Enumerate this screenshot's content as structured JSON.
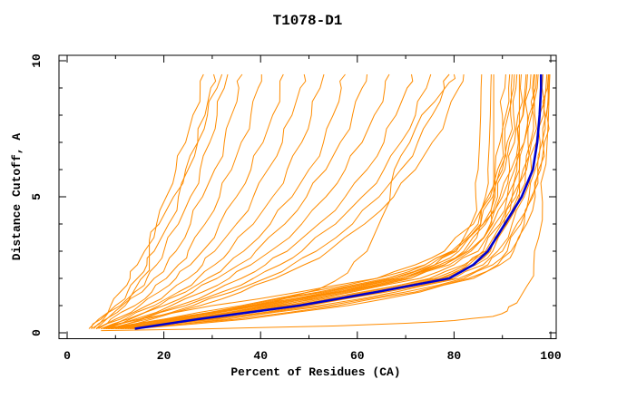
{
  "window": {
    "title": "T1078-D1"
  },
  "chart_data": {
    "type": "line",
    "title": "T1078-D1",
    "xlabel": "Percent of Residues (CA)",
    "ylabel": "Distance Cutoff, A",
    "xlim": [
      0,
      100
    ],
    "ylim": [
      0,
      10
    ],
    "x_major_ticks": [
      0,
      20,
      40,
      60,
      80,
      100
    ],
    "x_minor_step": 10,
    "y_major_ticks": [
      0,
      5,
      10
    ],
    "y_minor_step": 1,
    "grid": false,
    "legend_position": "none",
    "tick_style": "inward-mirrored",
    "colors": {
      "model_lines": "#ff8c00",
      "highlight_line": "#0000cd",
      "axis": "#000000",
      "background": "#ffffff",
      "text": "#000000"
    },
    "series": {
      "y_levels": [
        0.15,
        0.5,
        1,
        1.5,
        2,
        2.5,
        3,
        4,
        5,
        6,
        7,
        8,
        9,
        9.5
      ],
      "model_curves_x": [
        [
          4.5,
          6.5,
          9,
          11,
          13,
          14.5,
          16,
          18.5,
          20.5,
          22.5,
          24.5,
          26,
          27.5,
          28.2
        ],
        [
          5,
          7,
          10,
          12.5,
          14.5,
          16.5,
          18,
          21,
          23,
          25,
          27,
          28.5,
          29.7,
          30.3
        ],
        [
          5,
          7.5,
          11,
          14,
          16.5,
          18.5,
          20,
          23,
          25.5,
          27.5,
          29.5,
          31,
          32.5,
          33.2
        ],
        [
          5.5,
          8,
          12,
          15.5,
          18,
          20.5,
          22.5,
          25.5,
          28,
          30.5,
          32.5,
          34,
          35.5,
          36.2
        ],
        [
          6,
          9,
          14,
          17.5,
          20.5,
          23,
          25,
          28.5,
          31.5,
          34,
          36,
          38,
          39.5,
          40.2
        ],
        [
          6,
          10,
          15,
          19,
          22.5,
          25.5,
          28,
          31.5,
          35,
          38,
          40.5,
          42.5,
          44,
          44.7
        ],
        [
          6.5,
          11,
          16.5,
          21,
          25,
          28,
          30.5,
          35,
          38.5,
          41.5,
          44.5,
          46.5,
          48.2,
          49
        ],
        [
          7,
          12,
          18,
          23,
          27,
          30.5,
          33.5,
          38.5,
          42.5,
          45.5,
          48.5,
          50.5,
          52.3,
          53.1
        ],
        [
          7,
          12.5,
          19,
          24.5,
          29,
          33,
          36.5,
          42,
          46.5,
          50,
          53,
          55,
          56.7,
          57.5
        ],
        [
          7.5,
          13,
          20,
          26,
          31,
          35.5,
          39,
          45,
          49.5,
          53.5,
          56.5,
          59,
          61,
          62
        ],
        [
          8,
          14,
          21.5,
          28,
          33.5,
          38,
          42,
          48.5,
          53.5,
          57.5,
          61,
          63.5,
          65.7,
          66.6
        ],
        [
          8,
          15,
          23,
          30,
          36,
          41,
          45.5,
          52,
          57.5,
          62,
          65.5,
          68,
          70.3,
          71.2
        ],
        [
          8.5,
          15.5,
          24.5,
          32,
          38.5,
          44,
          48.5,
          55.5,
          61,
          65.5,
          69,
          72,
          74.3,
          75.2
        ],
        [
          9,
          16.5,
          26,
          34,
          41,
          46.5,
          51.5,
          59,
          64.5,
          69,
          72.5,
          75.5,
          78,
          79
        ],
        [
          9,
          17.5,
          27.5,
          36,
          43,
          49,
          54,
          61.5,
          67.5,
          72,
          75.5,
          78.5,
          81,
          82
        ],
        [
          14,
          26,
          44,
          58,
          71,
          78,
          82.5,
          85.5,
          86.5,
          87,
          87.3,
          87.5,
          87.6,
          87.7
        ],
        [
          13,
          25,
          42,
          56,
          69,
          76,
          80.5,
          83.5,
          84.5,
          85,
          85.3,
          85.5,
          85.6,
          85.7
        ],
        [
          8,
          20,
          36,
          50,
          64,
          72,
          78,
          84,
          87,
          88.5,
          89.5,
          90,
          90.5,
          90.7
        ],
        [
          8.5,
          22,
          38,
          53,
          67,
          75,
          80,
          85.5,
          88,
          89.5,
          90.5,
          91.2,
          91.8,
          92
        ],
        [
          9,
          23,
          40,
          55,
          69,
          77,
          82,
          86.5,
          89,
          90.5,
          91.5,
          92.3,
          92.8,
          93
        ],
        [
          9.5,
          24,
          42,
          57,
          71,
          79,
          83.5,
          87.5,
          90,
          91.5,
          92.5,
          93.2,
          93.7,
          93.9
        ],
        [
          10,
          25,
          43,
          59,
          73,
          80,
          85,
          88.5,
          91,
          92.5,
          93.5,
          94.2,
          94.7,
          94.9
        ],
        [
          10.5,
          26,
          45,
          61,
          75,
          82,
          86,
          89.5,
          92,
          93.5,
          94.5,
          95.2,
          95.7,
          95.9
        ],
        [
          11,
          28,
          47,
          63,
          77,
          83,
          87,
          90.3,
          92.8,
          94.3,
          95.3,
          96,
          96.5,
          96.7
        ],
        [
          11.5,
          29,
          49,
          65,
          78,
          84.5,
          88,
          91,
          93.5,
          95,
          96,
          96.7,
          97.2,
          97.4
        ],
        [
          12,
          30,
          50,
          66,
          80,
          86,
          89,
          92,
          94.5,
          96,
          97,
          97.7,
          98.2,
          98.4
        ],
        [
          12.5,
          31,
          52,
          68,
          81,
          87,
          90,
          93,
          95.5,
          96.8,
          97.8,
          98.5,
          99,
          99.2
        ],
        [
          13,
          33,
          54,
          70,
          82,
          88,
          91,
          93.8,
          96,
          97.3,
          98.2,
          98.8,
          99.3,
          99.5
        ],
        [
          13.5,
          35,
          56,
          72,
          83,
          89,
          91.8,
          94.5,
          96.3,
          97.5,
          98.4,
          99,
          99.4,
          99.6
        ],
        [
          14,
          37,
          58,
          73,
          84,
          89.5,
          92.3,
          95,
          96.8,
          97.9,
          98.7,
          99.2,
          99.6,
          99.8
        ],
        [
          9,
          24,
          41,
          56,
          70,
          78,
          83,
          87.8,
          88.2,
          88.2,
          88.2,
          88.2,
          88.2,
          88.2
        ],
        [
          10,
          27,
          46,
          62,
          76,
          82.5,
          86.5,
          89.8,
          92,
          93.5,
          93.5,
          93.5,
          93.5,
          93.5
        ],
        [
          11,
          29,
          48,
          64,
          77.5,
          84,
          87.5,
          90.8,
          93.2,
          94.8,
          95.8,
          96.4,
          96.9,
          97.1
        ],
        [
          8,
          21,
          37,
          52,
          66,
          74,
          79.5,
          85,
          87.5,
          89,
          90,
          90.7,
          91.3,
          91.5
        ],
        [
          8.5,
          23,
          39,
          54,
          68,
          76,
          81,
          86,
          88.5,
          90,
          91,
          91.7,
          92.3,
          92.5
        ],
        [
          7.5,
          20,
          38,
          56,
          70,
          78,
          83,
          88,
          91,
          93,
          94.5,
          95.5,
          96.2,
          96.5
        ],
        [
          7,
          15,
          30,
          48,
          64,
          74,
          80,
          86,
          89.5,
          91.8,
          93.3,
          94.3,
          95,
          95.2
        ]
      ],
      "extra_model_curves": [
        [
          [
            6,
            0.15
          ],
          [
            10,
            0.8
          ],
          [
            14,
            1.6
          ],
          [
            17,
            2.3
          ],
          [
            17,
            3.4
          ],
          [
            19,
            4
          ],
          [
            22,
            5
          ],
          [
            24.5,
            6
          ],
          [
            27,
            7
          ],
          [
            29,
            8
          ],
          [
            31,
            9
          ],
          [
            32,
            9.5
          ]
        ],
        [
          [
            9,
            0.15
          ],
          [
            18,
            0.4
          ],
          [
            30,
            0.7
          ],
          [
            42,
            1.1
          ],
          [
            52,
            1.6
          ],
          [
            58,
            2.2
          ],
          [
            62,
            3
          ],
          [
            65,
            4.2
          ],
          [
            67,
            5.5
          ],
          [
            69,
            6.5
          ],
          [
            72,
            7.5
          ],
          [
            76,
            8.5
          ],
          [
            79,
            9.2
          ],
          [
            80,
            9.5
          ]
        ],
        [
          [
            7,
            0.08
          ],
          [
            30,
            0.15
          ],
          [
            55,
            0.25
          ],
          [
            70,
            0.35
          ],
          [
            80,
            0.45
          ],
          [
            88,
            0.6
          ],
          [
            91,
            0.8
          ],
          [
            93,
            1.1
          ],
          [
            95,
            1.7
          ],
          [
            96.5,
            2.5
          ],
          [
            97.5,
            3.5
          ],
          [
            98.3,
            4.8
          ],
          [
            99,
            6.2
          ],
          [
            99.5,
            7.8
          ],
          [
            99.8,
            9.5
          ]
        ]
      ],
      "highlight_curve_x": [
        14,
        27,
        48,
        64,
        79,
        84,
        87,
        90.5,
        94,
        96.3,
        97.2,
        97.7,
        98,
        98
      ]
    }
  }
}
